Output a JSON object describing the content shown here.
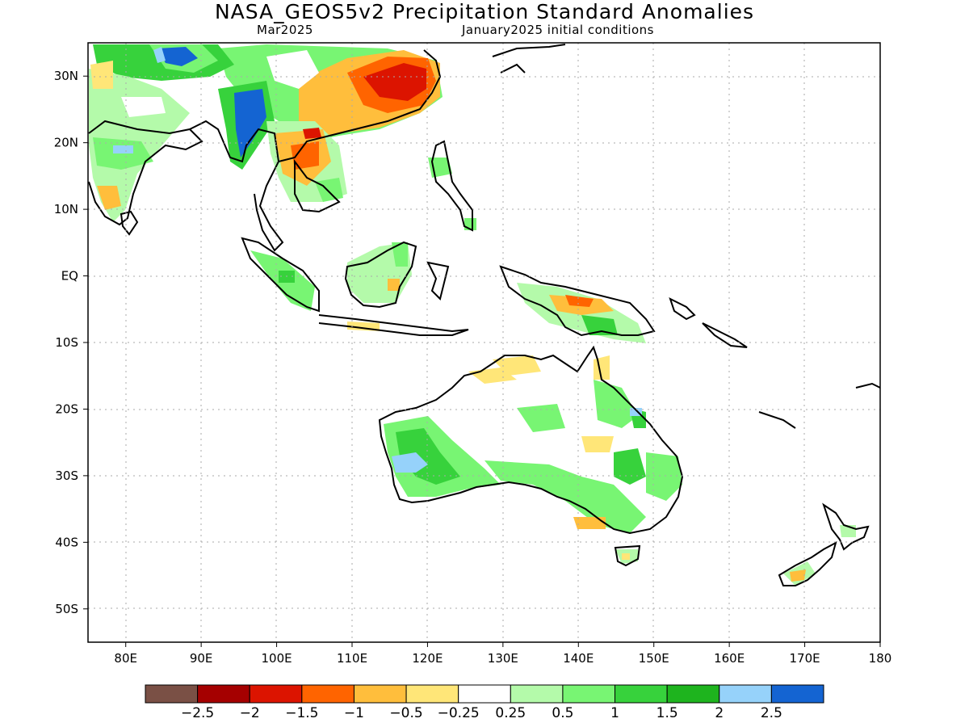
{
  "header": {
    "title": "NASA_GEOS5v2 Precipitation Standard Anomalies",
    "valid_month": "Mar2025",
    "init_conditions": "January2025 initial conditions"
  },
  "map": {
    "lon_range": [
      75,
      180
    ],
    "lat_range": [
      -55,
      35
    ],
    "lat_ticks": [
      {
        "value": 30,
        "label": "30N"
      },
      {
        "value": 20,
        "label": "20N"
      },
      {
        "value": 10,
        "label": "10N"
      },
      {
        "value": 0,
        "label": "EQ"
      },
      {
        "value": -10,
        "label": "10S"
      },
      {
        "value": -20,
        "label": "20S"
      },
      {
        "value": -30,
        "label": "30S"
      },
      {
        "value": -40,
        "label": "40S"
      },
      {
        "value": -50,
        "label": "50S"
      }
    ],
    "lon_ticks": [
      {
        "value": 80,
        "label": "80E"
      },
      {
        "value": 90,
        "label": "90E"
      },
      {
        "value": 100,
        "label": "100E"
      },
      {
        "value": 110,
        "label": "110E"
      },
      {
        "value": 120,
        "label": "120E"
      },
      {
        "value": 130,
        "label": "130E"
      },
      {
        "value": 140,
        "label": "140E"
      },
      {
        "value": 150,
        "label": "150E"
      },
      {
        "value": 160,
        "label": "160E"
      },
      {
        "value": 170,
        "label": "170E"
      },
      {
        "value": 180,
        "label": "180"
      }
    ]
  },
  "colorbar": {
    "colors": [
      "#7a5045",
      "#a50000",
      "#dc1400",
      "#ff6400",
      "#ffbe3c",
      "#ffe678",
      "#ffffff",
      "#b4faaa",
      "#78f573",
      "#37d23c",
      "#1eb41e",
      "#96d2fa",
      "#1464d2"
    ],
    "labels": [
      "−2.5",
      "−2",
      "−1.5",
      "−1",
      "−0.5",
      "−0.25",
      "0.25",
      "0.5",
      "1",
      "1.5",
      "2",
      "2.5"
    ]
  }
}
